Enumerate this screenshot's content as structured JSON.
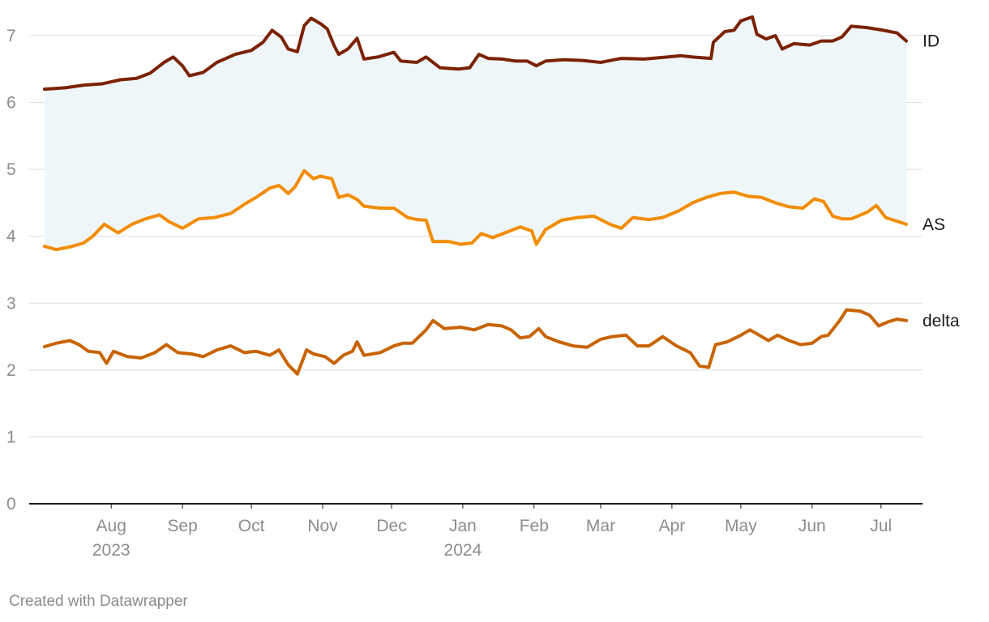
{
  "footer": {
    "credit": "Created with Datawrapper"
  },
  "chart_data": {
    "type": "line",
    "title": "",
    "xlabel": "",
    "ylabel": "",
    "ylim": [
      0,
      7
    ],
    "xlim": [
      "2023-07-03",
      "2024-07-12"
    ],
    "grid": true,
    "legend": "inline labels at right end of each line",
    "y_ticks": [
      "0",
      "1",
      "2",
      "3",
      "4",
      "5",
      "6",
      "7"
    ],
    "x_ticks": [
      {
        "date": "2023-08-01",
        "label": "Aug",
        "sublabel": "2023"
      },
      {
        "date": "2023-09-01",
        "label": "Sep",
        "sublabel": ""
      },
      {
        "date": "2023-10-01",
        "label": "Oct",
        "sublabel": ""
      },
      {
        "date": "2023-11-01",
        "label": "Nov",
        "sublabel": ""
      },
      {
        "date": "2023-12-01",
        "label": "Dec",
        "sublabel": ""
      },
      {
        "date": "2024-01-01",
        "label": "Jan",
        "sublabel": "2024"
      },
      {
        "date": "2024-02-01",
        "label": "Feb",
        "sublabel": ""
      },
      {
        "date": "2024-03-01",
        "label": "Mar",
        "sublabel": ""
      },
      {
        "date": "2024-04-01",
        "label": "Apr",
        "sublabel": ""
      },
      {
        "date": "2024-05-01",
        "label": "May",
        "sublabel": ""
      },
      {
        "date": "2024-06-01",
        "label": "Jun",
        "sublabel": ""
      },
      {
        "date": "2024-07-01",
        "label": "Jul",
        "sublabel": ""
      }
    ],
    "area_fill": {
      "between": [
        "ID",
        "AS"
      ],
      "color": "#eef6fa"
    },
    "series": [
      {
        "name": "ID",
        "color": "#7b2200",
        "points": [
          [
            "2023-07-03",
            6.2
          ],
          [
            "2023-07-12",
            6.22
          ],
          [
            "2023-07-20",
            6.26
          ],
          [
            "2023-07-28",
            6.28
          ],
          [
            "2023-08-05",
            6.34
          ],
          [
            "2023-08-12",
            6.36
          ],
          [
            "2023-08-18",
            6.44
          ],
          [
            "2023-08-24",
            6.6
          ],
          [
            "2023-08-28",
            6.68
          ],
          [
            "2023-09-01",
            6.55
          ],
          [
            "2023-09-04",
            6.4
          ],
          [
            "2023-09-10",
            6.45
          ],
          [
            "2023-09-16",
            6.6
          ],
          [
            "2023-09-24",
            6.72
          ],
          [
            "2023-10-01",
            6.78
          ],
          [
            "2023-10-06",
            6.9
          ],
          [
            "2023-10-10",
            7.08
          ],
          [
            "2023-10-14",
            6.98
          ],
          [
            "2023-10-17",
            6.8
          ],
          [
            "2023-10-21",
            6.76
          ],
          [
            "2023-10-24",
            7.15
          ],
          [
            "2023-10-27",
            7.26
          ],
          [
            "2023-10-31",
            7.18
          ],
          [
            "2023-11-03",
            7.1
          ],
          [
            "2023-11-06",
            6.85
          ],
          [
            "2023-11-08",
            6.72
          ],
          [
            "2023-11-12",
            6.8
          ],
          [
            "2023-11-16",
            6.96
          ],
          [
            "2023-11-19",
            6.65
          ],
          [
            "2023-11-25",
            6.68
          ],
          [
            "2023-12-02",
            6.75
          ],
          [
            "2023-12-05",
            6.62
          ],
          [
            "2023-12-12",
            6.6
          ],
          [
            "2023-12-16",
            6.68
          ],
          [
            "2023-12-22",
            6.52
          ],
          [
            "2023-12-30",
            6.5
          ],
          [
            "2024-01-04",
            6.52
          ],
          [
            "2024-01-08",
            6.72
          ],
          [
            "2024-01-12",
            6.66
          ],
          [
            "2024-01-18",
            6.65
          ],
          [
            "2024-01-24",
            6.62
          ],
          [
            "2024-01-29",
            6.62
          ],
          [
            "2024-02-02",
            6.55
          ],
          [
            "2024-02-06",
            6.62
          ],
          [
            "2024-02-14",
            6.64
          ],
          [
            "2024-02-22",
            6.63
          ],
          [
            "2024-03-01",
            6.6
          ],
          [
            "2024-03-10",
            6.66
          ],
          [
            "2024-03-20",
            6.65
          ],
          [
            "2024-03-30",
            6.68
          ],
          [
            "2024-04-05",
            6.7
          ],
          [
            "2024-04-10",
            6.68
          ],
          [
            "2024-04-18",
            6.66
          ],
          [
            "2024-04-19",
            6.9
          ],
          [
            "2024-04-24",
            7.06
          ],
          [
            "2024-04-28",
            7.08
          ],
          [
            "2024-05-01",
            7.22
          ],
          [
            "2024-05-06",
            7.28
          ],
          [
            "2024-05-08",
            7.02
          ],
          [
            "2024-05-12",
            6.95
          ],
          [
            "2024-05-16",
            7.0
          ],
          [
            "2024-05-19",
            6.8
          ],
          [
            "2024-05-24",
            6.88
          ],
          [
            "2024-05-31",
            6.86
          ],
          [
            "2024-06-05",
            6.92
          ],
          [
            "2024-06-10",
            6.92
          ],
          [
            "2024-06-14",
            6.98
          ],
          [
            "2024-06-18",
            7.14
          ],
          [
            "2024-06-25",
            7.12
          ],
          [
            "2024-07-02",
            7.08
          ],
          [
            "2024-07-08",
            7.04
          ],
          [
            "2024-07-12",
            6.92
          ]
        ]
      },
      {
        "name": "AS",
        "color": "#f28c00",
        "points": [
          [
            "2023-07-03",
            3.85
          ],
          [
            "2023-07-08",
            3.8
          ],
          [
            "2023-07-14",
            3.84
          ],
          [
            "2023-07-20",
            3.9
          ],
          [
            "2023-07-24",
            4.0
          ],
          [
            "2023-07-29",
            4.18
          ],
          [
            "2023-08-04",
            4.05
          ],
          [
            "2023-08-10",
            4.18
          ],
          [
            "2023-08-16",
            4.26
          ],
          [
            "2023-08-22",
            4.32
          ],
          [
            "2023-08-26",
            4.22
          ],
          [
            "2023-09-01",
            4.12
          ],
          [
            "2023-09-08",
            4.26
          ],
          [
            "2023-09-15",
            4.28
          ],
          [
            "2023-09-22",
            4.34
          ],
          [
            "2023-09-28",
            4.48
          ],
          [
            "2023-10-03",
            4.58
          ],
          [
            "2023-10-09",
            4.72
          ],
          [
            "2023-10-13",
            4.76
          ],
          [
            "2023-10-17",
            4.64
          ],
          [
            "2023-10-20",
            4.74
          ],
          [
            "2023-10-24",
            4.98
          ],
          [
            "2023-10-28",
            4.86
          ],
          [
            "2023-10-31",
            4.9
          ],
          [
            "2023-11-05",
            4.86
          ],
          [
            "2023-11-08",
            4.58
          ],
          [
            "2023-11-12",
            4.62
          ],
          [
            "2023-11-16",
            4.55
          ],
          [
            "2023-11-19",
            4.45
          ],
          [
            "2023-11-26",
            4.42
          ],
          [
            "2023-12-02",
            4.42
          ],
          [
            "2023-12-08",
            4.28
          ],
          [
            "2023-12-12",
            4.25
          ],
          [
            "2023-12-16",
            4.24
          ],
          [
            "2023-12-19",
            3.92
          ],
          [
            "2023-12-26",
            3.92
          ],
          [
            "2023-12-31",
            3.88
          ],
          [
            "2024-01-05",
            3.9
          ],
          [
            "2024-01-09",
            4.04
          ],
          [
            "2024-01-14",
            3.98
          ],
          [
            "2024-01-20",
            4.06
          ],
          [
            "2024-01-26",
            4.14
          ],
          [
            "2024-01-31",
            4.08
          ],
          [
            "2024-02-02",
            3.88
          ],
          [
            "2024-02-06",
            4.1
          ],
          [
            "2024-02-13",
            4.24
          ],
          [
            "2024-02-20",
            4.28
          ],
          [
            "2024-02-27",
            4.3
          ],
          [
            "2024-03-05",
            4.18
          ],
          [
            "2024-03-10",
            4.12
          ],
          [
            "2024-03-15",
            4.28
          ],
          [
            "2024-03-22",
            4.25
          ],
          [
            "2024-03-28",
            4.28
          ],
          [
            "2024-04-04",
            4.38
          ],
          [
            "2024-04-10",
            4.5
          ],
          [
            "2024-04-16",
            4.58
          ],
          [
            "2024-04-22",
            4.64
          ],
          [
            "2024-04-28",
            4.66
          ],
          [
            "2024-05-04",
            4.6
          ],
          [
            "2024-05-10",
            4.58
          ],
          [
            "2024-05-16",
            4.5
          ],
          [
            "2024-05-22",
            4.44
          ],
          [
            "2024-05-28",
            4.42
          ],
          [
            "2024-06-02",
            4.56
          ],
          [
            "2024-06-06",
            4.52
          ],
          [
            "2024-06-10",
            4.3
          ],
          [
            "2024-06-14",
            4.26
          ],
          [
            "2024-06-18",
            4.26
          ],
          [
            "2024-06-25",
            4.36
          ],
          [
            "2024-06-29",
            4.46
          ],
          [
            "2024-07-03",
            4.28
          ],
          [
            "2024-07-12",
            4.18
          ]
        ]
      },
      {
        "name": "delta",
        "color": "#c86400",
        "points": [
          [
            "2023-07-03",
            2.35
          ],
          [
            "2023-07-08",
            2.4
          ],
          [
            "2023-07-14",
            2.44
          ],
          [
            "2023-07-18",
            2.38
          ],
          [
            "2023-07-22",
            2.28
          ],
          [
            "2023-07-27",
            2.26
          ],
          [
            "2023-07-30",
            2.1
          ],
          [
            "2023-08-02",
            2.28
          ],
          [
            "2023-08-08",
            2.2
          ],
          [
            "2023-08-14",
            2.18
          ],
          [
            "2023-08-20",
            2.26
          ],
          [
            "2023-08-25",
            2.38
          ],
          [
            "2023-08-30",
            2.26
          ],
          [
            "2023-09-05",
            2.24
          ],
          [
            "2023-09-10",
            2.2
          ],
          [
            "2023-09-16",
            2.3
          ],
          [
            "2023-09-22",
            2.36
          ],
          [
            "2023-09-28",
            2.26
          ],
          [
            "2023-10-03",
            2.28
          ],
          [
            "2023-10-09",
            2.22
          ],
          [
            "2023-10-13",
            2.3
          ],
          [
            "2023-10-17",
            2.08
          ],
          [
            "2023-10-21",
            1.94
          ],
          [
            "2023-10-25",
            2.3
          ],
          [
            "2023-10-28",
            2.24
          ],
          [
            "2023-11-02",
            2.2
          ],
          [
            "2023-11-06",
            2.1
          ],
          [
            "2023-11-10",
            2.22
          ],
          [
            "2023-11-14",
            2.28
          ],
          [
            "2023-11-16",
            2.42
          ],
          [
            "2023-11-19",
            2.22
          ],
          [
            "2023-11-26",
            2.26
          ],
          [
            "2023-12-02",
            2.36
          ],
          [
            "2023-12-06",
            2.4
          ],
          [
            "2023-12-10",
            2.4
          ],
          [
            "2023-12-16",
            2.6
          ],
          [
            "2023-12-19",
            2.74
          ],
          [
            "2023-12-24",
            2.62
          ],
          [
            "2023-12-31",
            2.64
          ],
          [
            "2024-01-06",
            2.6
          ],
          [
            "2024-01-12",
            2.68
          ],
          [
            "2024-01-18",
            2.66
          ],
          [
            "2024-01-22",
            2.6
          ],
          [
            "2024-01-26",
            2.48
          ],
          [
            "2024-01-30",
            2.5
          ],
          [
            "2024-02-03",
            2.62
          ],
          [
            "2024-02-06",
            2.5
          ],
          [
            "2024-02-12",
            2.42
          ],
          [
            "2024-02-18",
            2.36
          ],
          [
            "2024-02-24",
            2.34
          ],
          [
            "2024-03-01",
            2.46
          ],
          [
            "2024-03-06",
            2.5
          ],
          [
            "2024-03-12",
            2.52
          ],
          [
            "2024-03-17",
            2.36
          ],
          [
            "2024-03-22",
            2.36
          ],
          [
            "2024-03-28",
            2.5
          ],
          [
            "2024-04-03",
            2.36
          ],
          [
            "2024-04-09",
            2.26
          ],
          [
            "2024-04-13",
            2.06
          ],
          [
            "2024-04-17",
            2.04
          ],
          [
            "2024-04-20",
            2.38
          ],
          [
            "2024-04-25",
            2.42
          ],
          [
            "2024-05-01",
            2.52
          ],
          [
            "2024-05-05",
            2.6
          ],
          [
            "2024-05-09",
            2.52
          ],
          [
            "2024-05-13",
            2.44
          ],
          [
            "2024-05-17",
            2.52
          ],
          [
            "2024-05-22",
            2.44
          ],
          [
            "2024-05-27",
            2.38
          ],
          [
            "2024-06-01",
            2.4
          ],
          [
            "2024-06-05",
            2.5
          ],
          [
            "2024-06-08",
            2.52
          ],
          [
            "2024-06-13",
            2.74
          ],
          [
            "2024-06-16",
            2.9
          ],
          [
            "2024-06-22",
            2.88
          ],
          [
            "2024-06-26",
            2.82
          ],
          [
            "2024-06-30",
            2.66
          ],
          [
            "2024-07-04",
            2.72
          ],
          [
            "2024-07-08",
            2.76
          ],
          [
            "2024-07-12",
            2.74
          ]
        ]
      }
    ]
  }
}
